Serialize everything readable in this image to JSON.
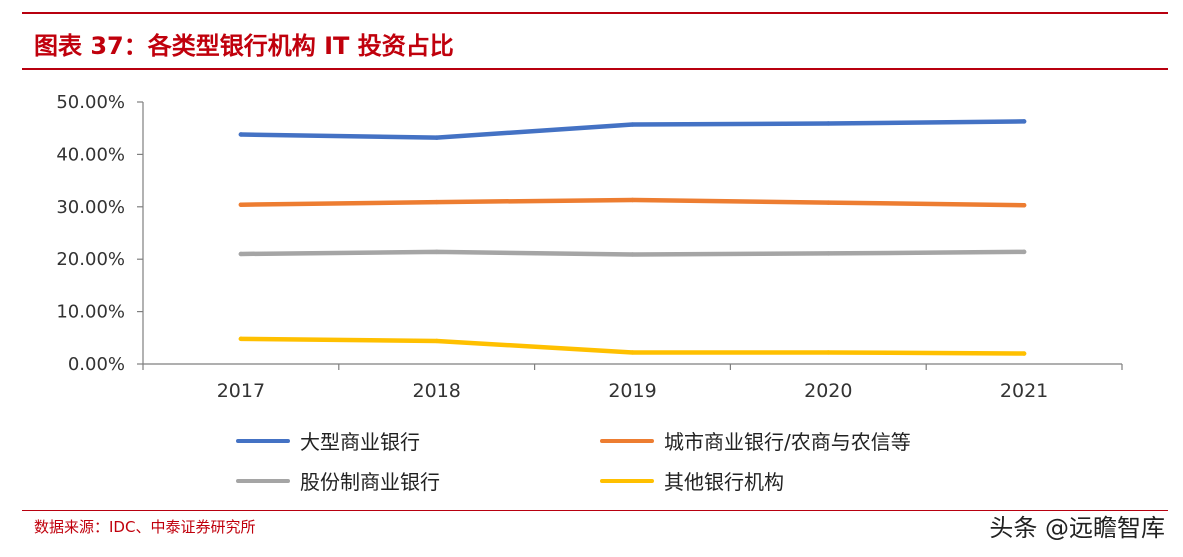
{
  "header": {
    "title": "图表 37：各类型银行机构 IT 投资占比"
  },
  "footer": {
    "source": "数据来源：IDC、中泰证券研究所",
    "watermark": "头条 @远瞻智库"
  },
  "chart_data": {
    "type": "line",
    "x": [
      "2017",
      "2018",
      "2019",
      "2020",
      "2021"
    ],
    "ylim": [
      0,
      50
    ],
    "yticks": [
      "0.00%",
      "10.00%",
      "20.00%",
      "30.00%",
      "40.00%",
      "50.00%"
    ],
    "grid": false,
    "legend_position": "bottom",
    "series": [
      {
        "name": "大型商业银行",
        "color": "#4472c4",
        "values": [
          43.8,
          43.2,
          45.7,
          45.9,
          46.3
        ]
      },
      {
        "name": "城市商业银行/农商与农信等",
        "color": "#ed7d31",
        "values": [
          30.4,
          30.9,
          31.3,
          30.8,
          30.3
        ]
      },
      {
        "name": "股份制商业银行",
        "color": "#a5a5a5",
        "values": [
          21.0,
          21.4,
          20.9,
          21.1,
          21.4
        ]
      },
      {
        "name": "其他银行机构",
        "color": "#ffc000",
        "values": [
          4.8,
          4.4,
          2.2,
          2.2,
          2.0
        ]
      }
    ]
  }
}
